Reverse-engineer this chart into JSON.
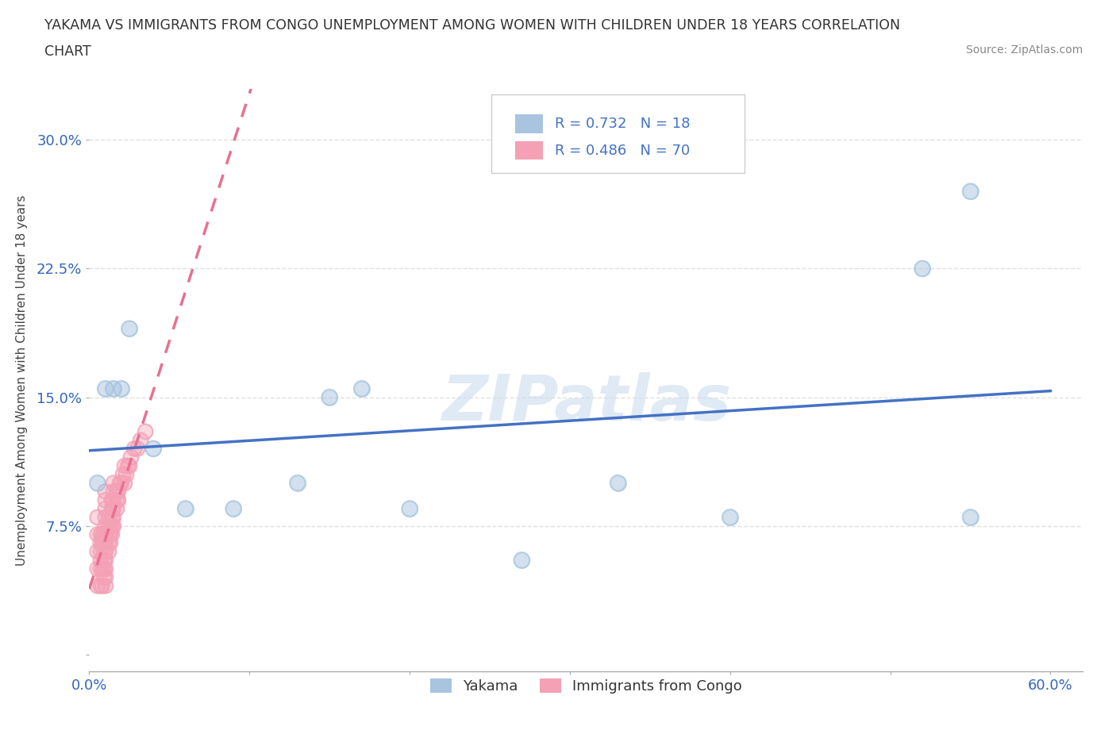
{
  "title_line1": "YAKAMA VS IMMIGRANTS FROM CONGO UNEMPLOYMENT AMONG WOMEN WITH CHILDREN UNDER 18 YEARS CORRELATION",
  "title_line2": "CHART",
  "source": "Source: ZipAtlas.com",
  "ylabel": "Unemployment Among Women with Children Under 18 years",
  "yakama_R": 0.732,
  "yakama_N": 18,
  "congo_R": 0.486,
  "congo_N": 70,
  "xlim": [
    0.0,
    0.62
  ],
  "ylim": [
    -0.01,
    0.33
  ],
  "xticks": [
    0.0,
    0.1,
    0.2,
    0.3,
    0.4,
    0.5,
    0.6
  ],
  "yticks": [
    0.0,
    0.075,
    0.15,
    0.225,
    0.3
  ],
  "ytick_labels": [
    "",
    "7.5%",
    "15.0%",
    "22.5%",
    "30.0%"
  ],
  "xtick_labels": [
    "0.0%",
    "",
    "",
    "",
    "",
    "",
    "60.0%"
  ],
  "watermark": "ZIPatlas",
  "yakama_color": "#a8c4e0",
  "congo_color": "#f4a0b5",
  "yakama_line_color": "#4472c4",
  "congo_line_color": "#e87090",
  "background_color": "#ffffff",
  "grid_color": "#e0e0e0",
  "yakama_x": [
    0.005,
    0.01,
    0.015,
    0.02,
    0.025,
    0.04,
    0.06,
    0.09,
    0.13,
    0.15,
    0.17,
    0.2,
    0.27,
    0.33,
    0.4,
    0.52,
    0.55,
    0.55
  ],
  "yakama_y": [
    0.1,
    0.155,
    0.155,
    0.155,
    0.19,
    0.12,
    0.085,
    0.085,
    0.1,
    0.15,
    0.155,
    0.085,
    0.055,
    0.1,
    0.08,
    0.225,
    0.27,
    0.08
  ],
  "congo_x": [
    0.005,
    0.005,
    0.005,
    0.005,
    0.005,
    0.007,
    0.007,
    0.007,
    0.007,
    0.007,
    0.007,
    0.008,
    0.008,
    0.008,
    0.008,
    0.009,
    0.009,
    0.009,
    0.009,
    0.009,
    0.009,
    0.01,
    0.01,
    0.01,
    0.01,
    0.01,
    0.01,
    0.01,
    0.01,
    0.01,
    0.01,
    0.01,
    0.01,
    0.012,
    0.012,
    0.012,
    0.012,
    0.012,
    0.013,
    0.013,
    0.013,
    0.014,
    0.014,
    0.014,
    0.014,
    0.014,
    0.015,
    0.015,
    0.015,
    0.015,
    0.015,
    0.015,
    0.017,
    0.017,
    0.017,
    0.018,
    0.018,
    0.019,
    0.02,
    0.021,
    0.022,
    0.022,
    0.023,
    0.024,
    0.025,
    0.026,
    0.028,
    0.03,
    0.032,
    0.035
  ],
  "congo_y": [
    0.04,
    0.05,
    0.06,
    0.07,
    0.08,
    0.04,
    0.05,
    0.055,
    0.06,
    0.065,
    0.07,
    0.04,
    0.05,
    0.065,
    0.07,
    0.045,
    0.05,
    0.055,
    0.06,
    0.065,
    0.07,
    0.04,
    0.045,
    0.05,
    0.055,
    0.06,
    0.065,
    0.07,
    0.075,
    0.08,
    0.085,
    0.09,
    0.095,
    0.06,
    0.065,
    0.07,
    0.075,
    0.08,
    0.065,
    0.07,
    0.075,
    0.07,
    0.075,
    0.08,
    0.085,
    0.09,
    0.075,
    0.08,
    0.085,
    0.09,
    0.095,
    0.1,
    0.085,
    0.09,
    0.095,
    0.09,
    0.095,
    0.1,
    0.1,
    0.105,
    0.1,
    0.11,
    0.105,
    0.11,
    0.11,
    0.115,
    0.12,
    0.12,
    0.125,
    0.13
  ],
  "legend_entries": [
    {
      "label": "R = 0.732   N = 18",
      "color": "#a8c4e0"
    },
    {
      "label": "R = 0.486   N = 70",
      "color": "#f4a0b5"
    }
  ],
  "bottom_legend": [
    "Yakama",
    "Immigrants from Congo"
  ]
}
